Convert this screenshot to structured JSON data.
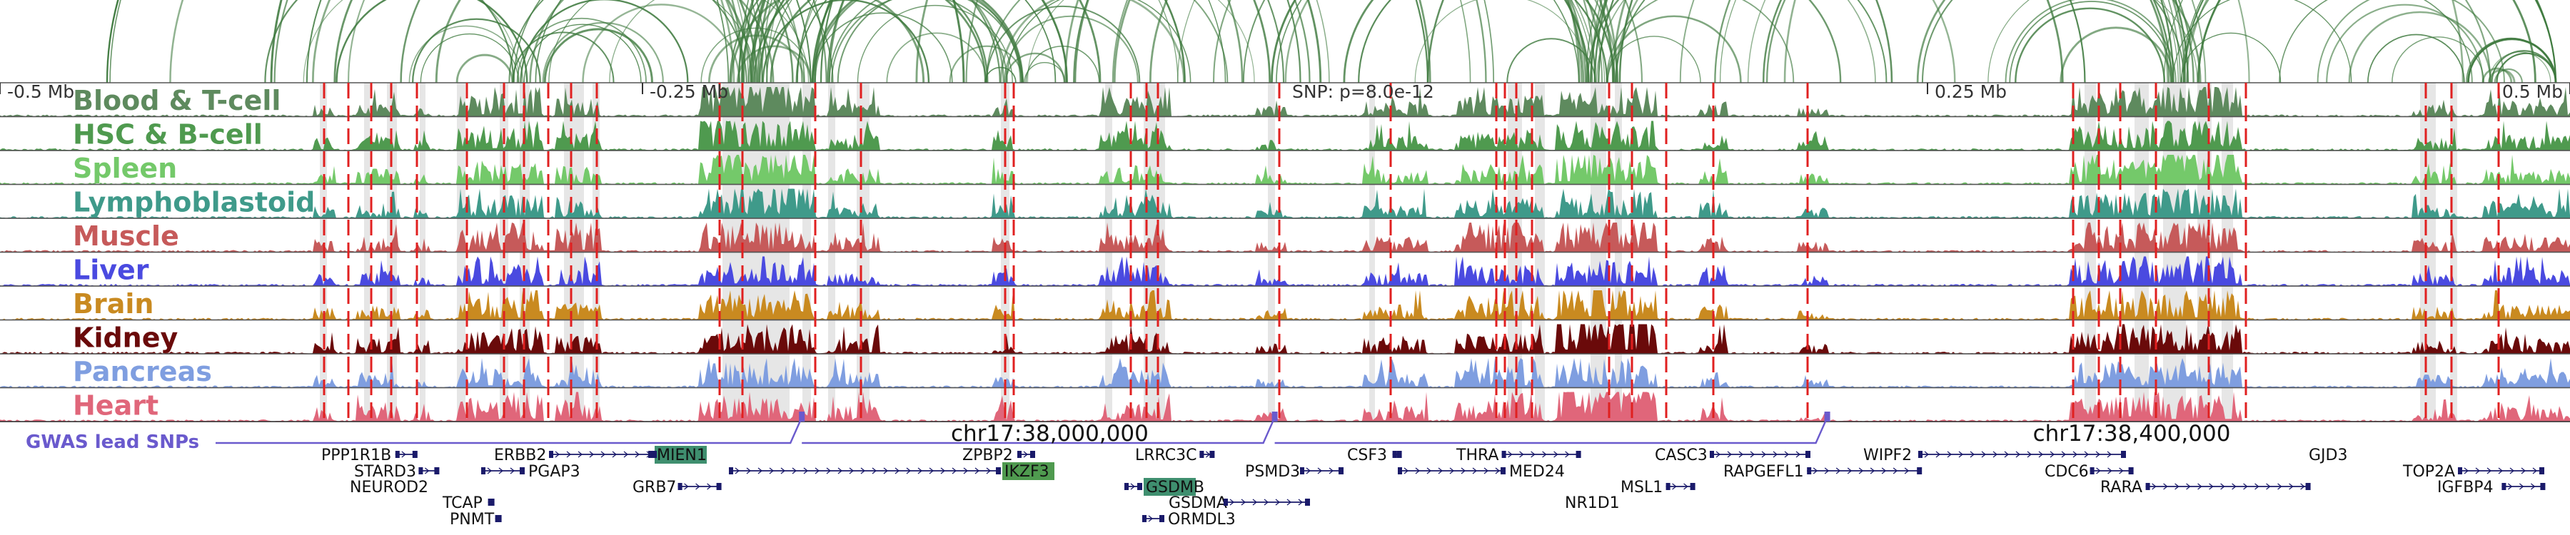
{
  "figure": {
    "snp_label": "SNP: p=8.0e-12",
    "gwas_label": "GWAS lead SNPs",
    "gwas_color": "#6a5acd",
    "axis_ticks": [
      {
        "label": "-0.5 Mb",
        "pos": 0.0
      },
      {
        "label": "-0.25 Mb",
        "pos": 0.25
      },
      {
        "label": "0.25 Mb",
        "pos": 0.75
      },
      {
        "label": "0.5 Mb",
        "pos": 1.0
      }
    ],
    "chromosome_labels": [
      {
        "label": "chr17:38,000,000",
        "pos": 0.37
      },
      {
        "label": "chr17:38,400,000",
        "pos": 0.791
      }
    ]
  },
  "tracks": [
    {
      "name": "Blood & T-cell",
      "color": "#5e8a5e"
    },
    {
      "name": "HSC & B-cell",
      "color": "#4f9a4f"
    },
    {
      "name": "Spleen",
      "color": "#74c96a"
    },
    {
      "name": "Lymphoblastoid",
      "color": "#3f9a8a"
    },
    {
      "name": "Muscle",
      "color": "#c65a5a"
    },
    {
      "name": "Liver",
      "color": "#4a4ae0"
    },
    {
      "name": "Brain",
      "color": "#c98a20"
    },
    {
      "name": "Kidney",
      "color": "#6a0a0a"
    },
    {
      "name": "Pancreas",
      "color": "#7f9ee0"
    },
    {
      "name": "Heart",
      "color": "#e0667a"
    }
  ],
  "gwas_snps": [
    0.312,
    0.496,
    0.711
  ],
  "genes": [
    {
      "name": "PPP1R1B",
      "pos": 0.138
    },
    {
      "name": "STARD3",
      "pos": 0.149
    },
    {
      "name": "NEUROD2",
      "pos": 0.149
    },
    {
      "name": "ERBB2",
      "pos": 0.203
    },
    {
      "name": "PGAP3",
      "pos": 0.234
    },
    {
      "name": "MIEN1",
      "pos": 0.267,
      "highlight": "#3f8f6f"
    },
    {
      "name": "GRB7",
      "pos": 0.255
    },
    {
      "name": "TCAP",
      "pos": 0.181
    },
    {
      "name": "PNMT",
      "pos": 0.184
    },
    {
      "name": "ZPBP2",
      "pos": 0.383
    },
    {
      "name": "IKZF3",
      "pos": 0.404,
      "highlight": "#4f9a4f"
    },
    {
      "name": "LRRC3C",
      "pos": 0.454
    },
    {
      "name": "GSDMB",
      "pos": 0.458,
      "highlight": "#3f8f6f"
    },
    {
      "name": "GSDMA",
      "pos": 0.467
    },
    {
      "name": "ORMDL3",
      "pos": 0.467
    },
    {
      "name": "PSMD3",
      "pos": 0.496
    },
    {
      "name": "CSF3",
      "pos": 0.533
    },
    {
      "name": "THRA",
      "pos": 0.575
    },
    {
      "name": "MED24",
      "pos": 0.599
    },
    {
      "name": "MSL1",
      "pos": 0.638
    },
    {
      "name": "NR1D1",
      "pos": 0.638
    },
    {
      "name": "CASC3",
      "pos": 0.674
    },
    {
      "name": "RAPGEFL1",
      "pos": 0.685
    },
    {
      "name": "WIPF2",
      "pos": 0.752
    },
    {
      "name": "CDC6",
      "pos": 0.823
    },
    {
      "name": "RARA",
      "pos": 0.827
    },
    {
      "name": "GJD3",
      "pos": 0.898
    },
    {
      "name": "TOP2A",
      "pos": 0.962
    },
    {
      "name": "IGFBP4",
      "pos": 0.967
    }
  ]
}
